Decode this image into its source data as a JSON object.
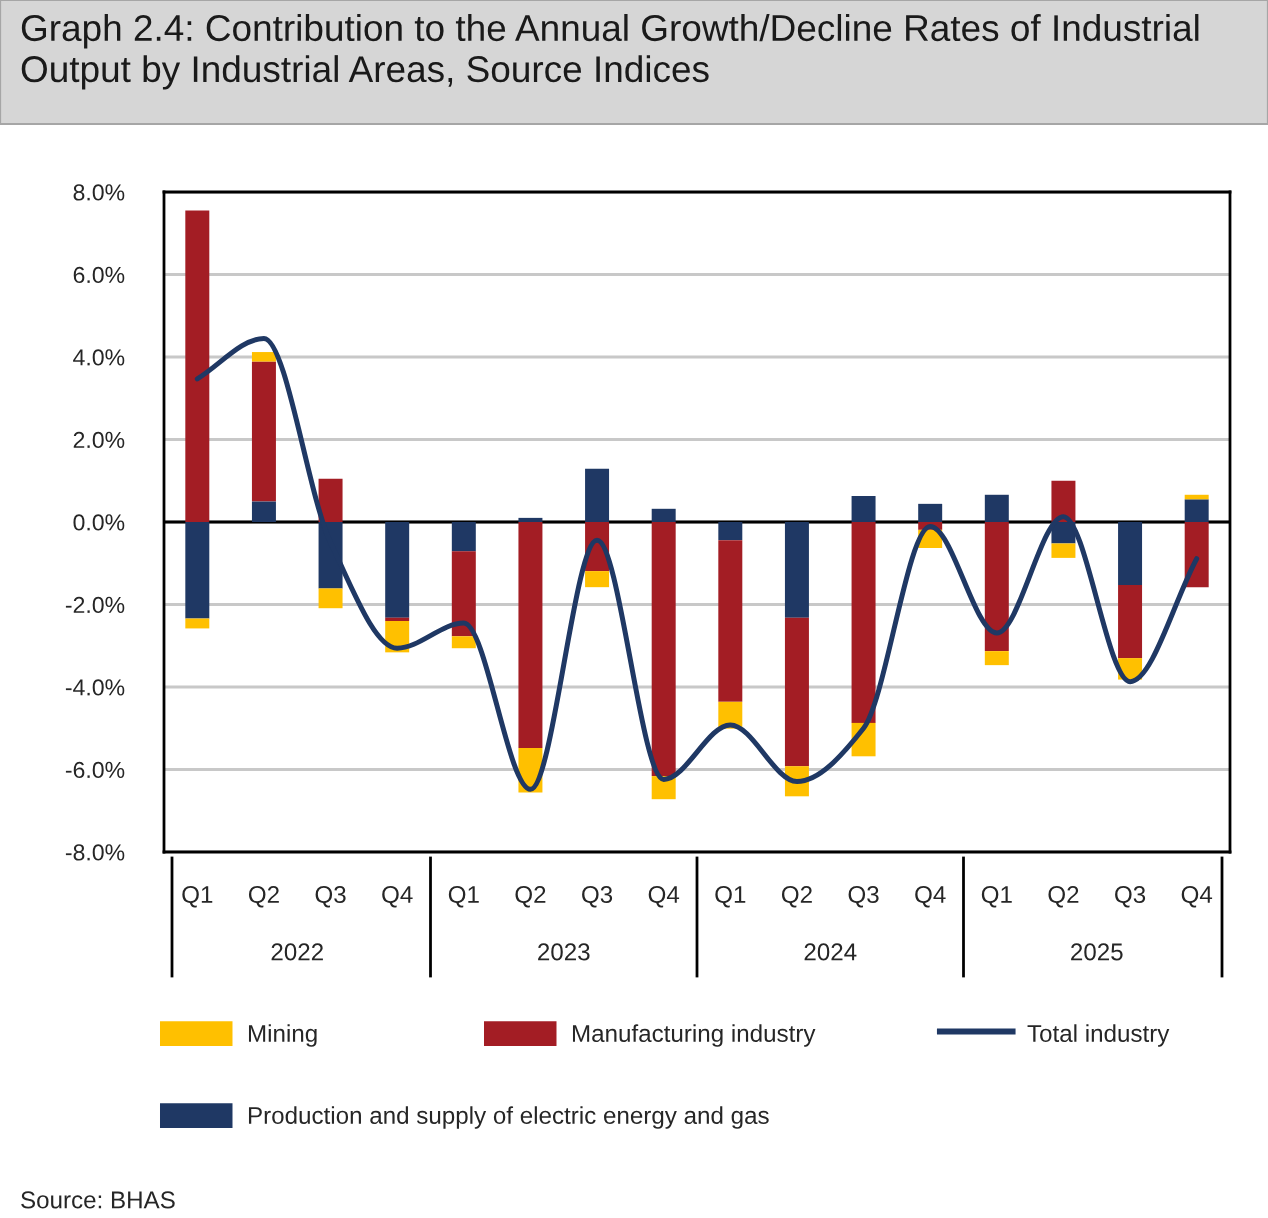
{
  "chart_data": {
    "type": "bar",
    "title": "Graph 2.4: Contribution to the Annual Growth/Decline Rates of Industrial Output by Industrial Areas, Source Indices",
    "categories": [
      "Q1",
      "Q2",
      "Q3",
      "Q4",
      "Q1",
      "Q2",
      "Q3",
      "Q4",
      "Q1",
      "Q2",
      "Q3",
      "Q4",
      "Q1",
      "Q2",
      "Q3",
      "Q4"
    ],
    "stacked": true,
    "series": [
      {
        "name": "Production and supply of electric energy and gas",
        "color": "#1f3864",
        "values": [
          -2.34,
          0.5,
          -1.61,
          -2.32,
          -0.71,
          0.1,
          1.29,
          0.32,
          -0.44,
          -2.32,
          0.63,
          0.44,
          0.66,
          -0.52,
          -1.53,
          0.55
        ]
      },
      {
        "name": "Manufacturing industry",
        "color": "#a31d24",
        "values": [
          7.55,
          3.39,
          1.05,
          -0.08,
          -2.06,
          -5.48,
          -1.19,
          -6.16,
          -3.92,
          -3.6,
          -4.87,
          -0.19,
          -3.13,
          1.0,
          -1.77,
          -1.58
        ]
      },
      {
        "name": "Mining",
        "color": "#ffc000",
        "values": [
          -0.24,
          0.23,
          -0.48,
          -0.76,
          -0.29,
          -1.08,
          -0.39,
          -0.56,
          -0.65,
          -0.73,
          -0.81,
          -0.44,
          -0.34,
          -0.35,
          -0.52,
          0.11
        ]
      },
      {
        "name": "Total industry",
        "type": "line",
        "color": "#1f3864",
        "values": [
          3.47,
          4.45,
          -0.5,
          -3.06,
          -2.45,
          -6.48,
          -0.44,
          -6.24,
          -4.92,
          -6.29,
          -5.0,
          -0.11,
          -2.69,
          0.13,
          -3.87,
          -0.89
        ]
      }
    ],
    "ylim": [
      -8,
      8
    ],
    "yticks": [
      {
        "value": -8,
        "label": "-8.0%"
      },
      {
        "value": -6,
        "label": "-6.0%"
      },
      {
        "value": -4,
        "label": "-4.0%"
      },
      {
        "value": -2,
        "label": "-2.0%"
      },
      {
        "value": 0,
        "label": "0.0%"
      },
      {
        "value": 2,
        "label": "2.0%"
      },
      {
        "value": 4,
        "label": "4.0%"
      },
      {
        "value": 6,
        "label": "6.0%"
      },
      {
        "value": 8,
        "label": "8.0%"
      }
    ],
    "grid": "y",
    "legend": "bottom",
    "ref_lines": [
      {
        "axis": "y",
        "value": 0,
        "color": "#000000"
      }
    ],
    "annotations": [
      "2022",
      "2023",
      "2024",
      "2025",
      "Source: BHAS"
    ]
  }
}
